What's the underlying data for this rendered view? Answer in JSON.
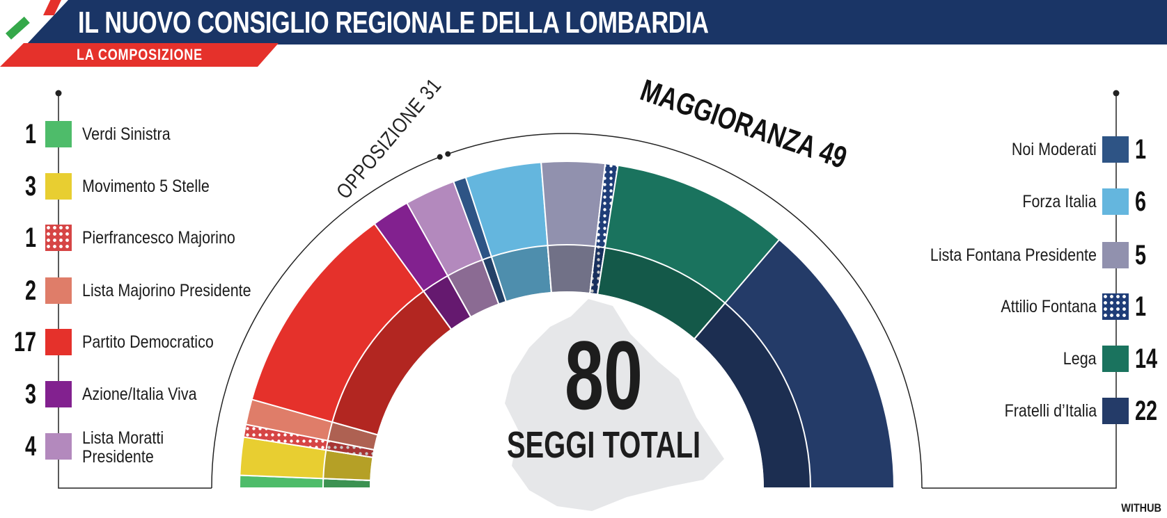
{
  "header": {
    "title": "IL NUOVO CONSIGLIO REGIONALE DELLA LOMBARDIA",
    "subtitle": "LA COMPOSIZIONE"
  },
  "credit": "WITHUB",
  "center": {
    "total": "80",
    "label": "SEGGI TOTALI"
  },
  "colors": {
    "header_bg": "#1a3566",
    "subheader_bg": "#e5312b"
  },
  "chart_data": {
    "type": "pie",
    "subtype": "semicircle-parliament",
    "total": 80,
    "groups": [
      {
        "label": "OPPOSIZIONE 31",
        "seats": 31
      },
      {
        "label": "MAGGIORANZA 49",
        "seats": 49
      }
    ],
    "series": [
      {
        "name": "Verdi Sinistra",
        "value": 1,
        "color": "#4ebc6a",
        "group": "opposizione",
        "pattern": "none"
      },
      {
        "name": "Movimento 5 Stelle",
        "value": 3,
        "color": "#e8ce31",
        "group": "opposizione",
        "pattern": "none"
      },
      {
        "name": "Pierfrancesco Majorino",
        "value": 1,
        "color": "#d64545",
        "group": "opposizione",
        "pattern": "dots"
      },
      {
        "name": "Lista Majorino Presidente",
        "value": 2,
        "color": "#df7d69",
        "group": "opposizione",
        "pattern": "none"
      },
      {
        "name": "Partito Democratico",
        "value": 17,
        "color": "#e5312b",
        "group": "opposizione",
        "pattern": "none"
      },
      {
        "name": "Azione/Italia Viva",
        "value": 3,
        "color": "#82218f",
        "group": "opposizione",
        "pattern": "none"
      },
      {
        "name": "Lista Moratti Presidente",
        "value": 4,
        "color": "#b389bd",
        "group": "opposizione",
        "pattern": "none"
      },
      {
        "name": "Noi Moderati",
        "value": 1,
        "color": "#2e5485",
        "group": "maggioranza",
        "pattern": "none"
      },
      {
        "name": "Forza Italia",
        "value": 6,
        "color": "#64b6de",
        "group": "maggioranza",
        "pattern": "none"
      },
      {
        "name": "Lista Fontana Presidente",
        "value": 5,
        "color": "#9191ae",
        "group": "maggioranza",
        "pattern": "none"
      },
      {
        "name": "Attilio Fontana",
        "value": 1,
        "color": "#1f3d78",
        "group": "maggioranza",
        "pattern": "dots"
      },
      {
        "name": "Lega",
        "value": 14,
        "color": "#1a735e",
        "group": "maggioranza",
        "pattern": "none"
      },
      {
        "name": "Fratelli d'Italia",
        "value": 22,
        "color": "#243b68",
        "group": "maggioranza",
        "pattern": "none"
      }
    ],
    "legend_left": [
      {
        "value": "1",
        "label": "Verdi Sinistra"
      },
      {
        "value": "3",
        "label": "Movimento 5 Stelle"
      },
      {
        "value": "1",
        "label": "Pierfrancesco Majorino"
      },
      {
        "value": "2",
        "label": "Lista Majorino Presidente"
      },
      {
        "value": "17",
        "label": "Partito Democratico"
      },
      {
        "value": "3",
        "label": "Azione/Italia Viva"
      },
      {
        "value": "4",
        "label": "Lista Moratti\nPresidente"
      }
    ],
    "legend_right": [
      {
        "value": "1",
        "label": "Noi Moderati"
      },
      {
        "value": "6",
        "label": "Forza Italia"
      },
      {
        "value": "5",
        "label": "Lista Fontana Presidente"
      },
      {
        "value": "1",
        "label": "Attilio Fontana"
      },
      {
        "value": "14",
        "label": "Lega"
      },
      {
        "value": "22",
        "label": "Fratelli d’Italia"
      }
    ]
  }
}
